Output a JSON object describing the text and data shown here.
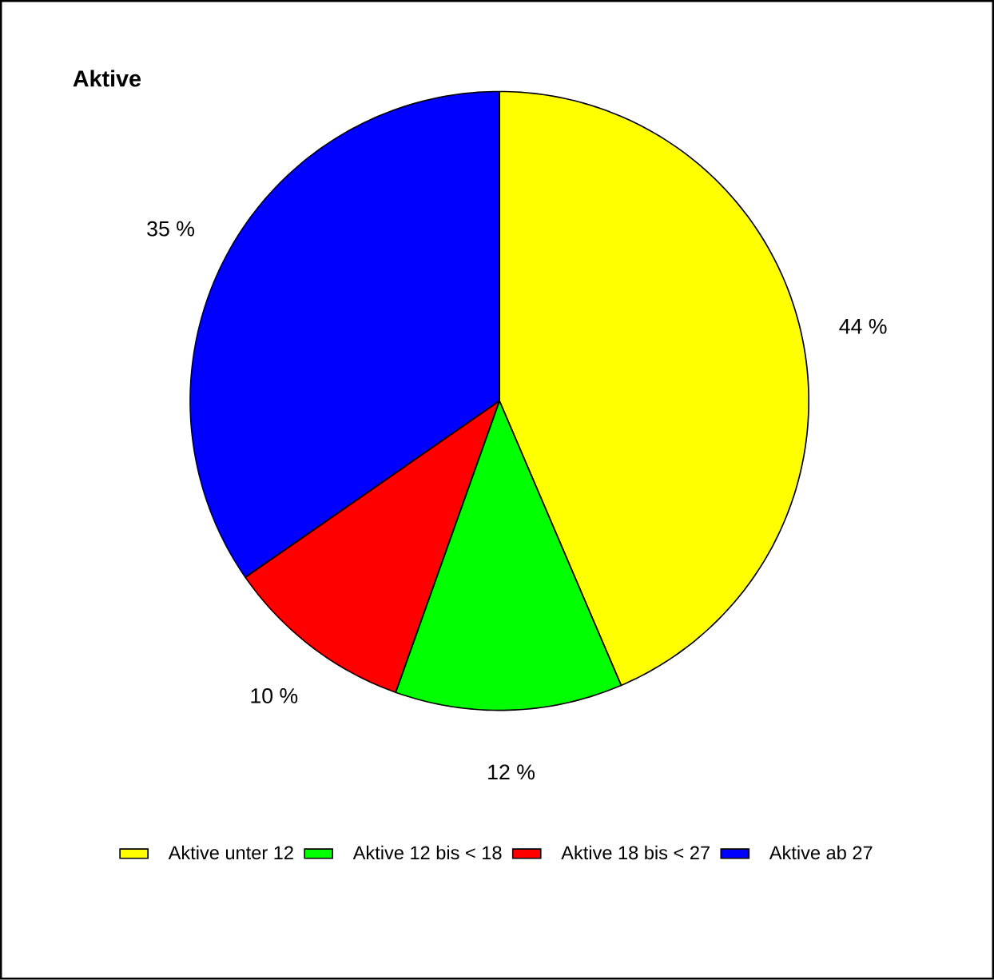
{
  "chart_data": {
    "type": "pie",
    "title": "Aktive",
    "categories": [
      "Aktive unter 12",
      "Aktive 12 bis < 18",
      "Aktive 18 bis < 27",
      "Aktive ab 27"
    ],
    "values": [
      44,
      12,
      10,
      35
    ],
    "colors": [
      "#ffff00",
      "#00ff00",
      "#ff0000",
      "#0000ff"
    ],
    "value_labels": [
      "44 %",
      "12 %",
      "10 %",
      "35 %"
    ],
    "legend": "bottom"
  }
}
